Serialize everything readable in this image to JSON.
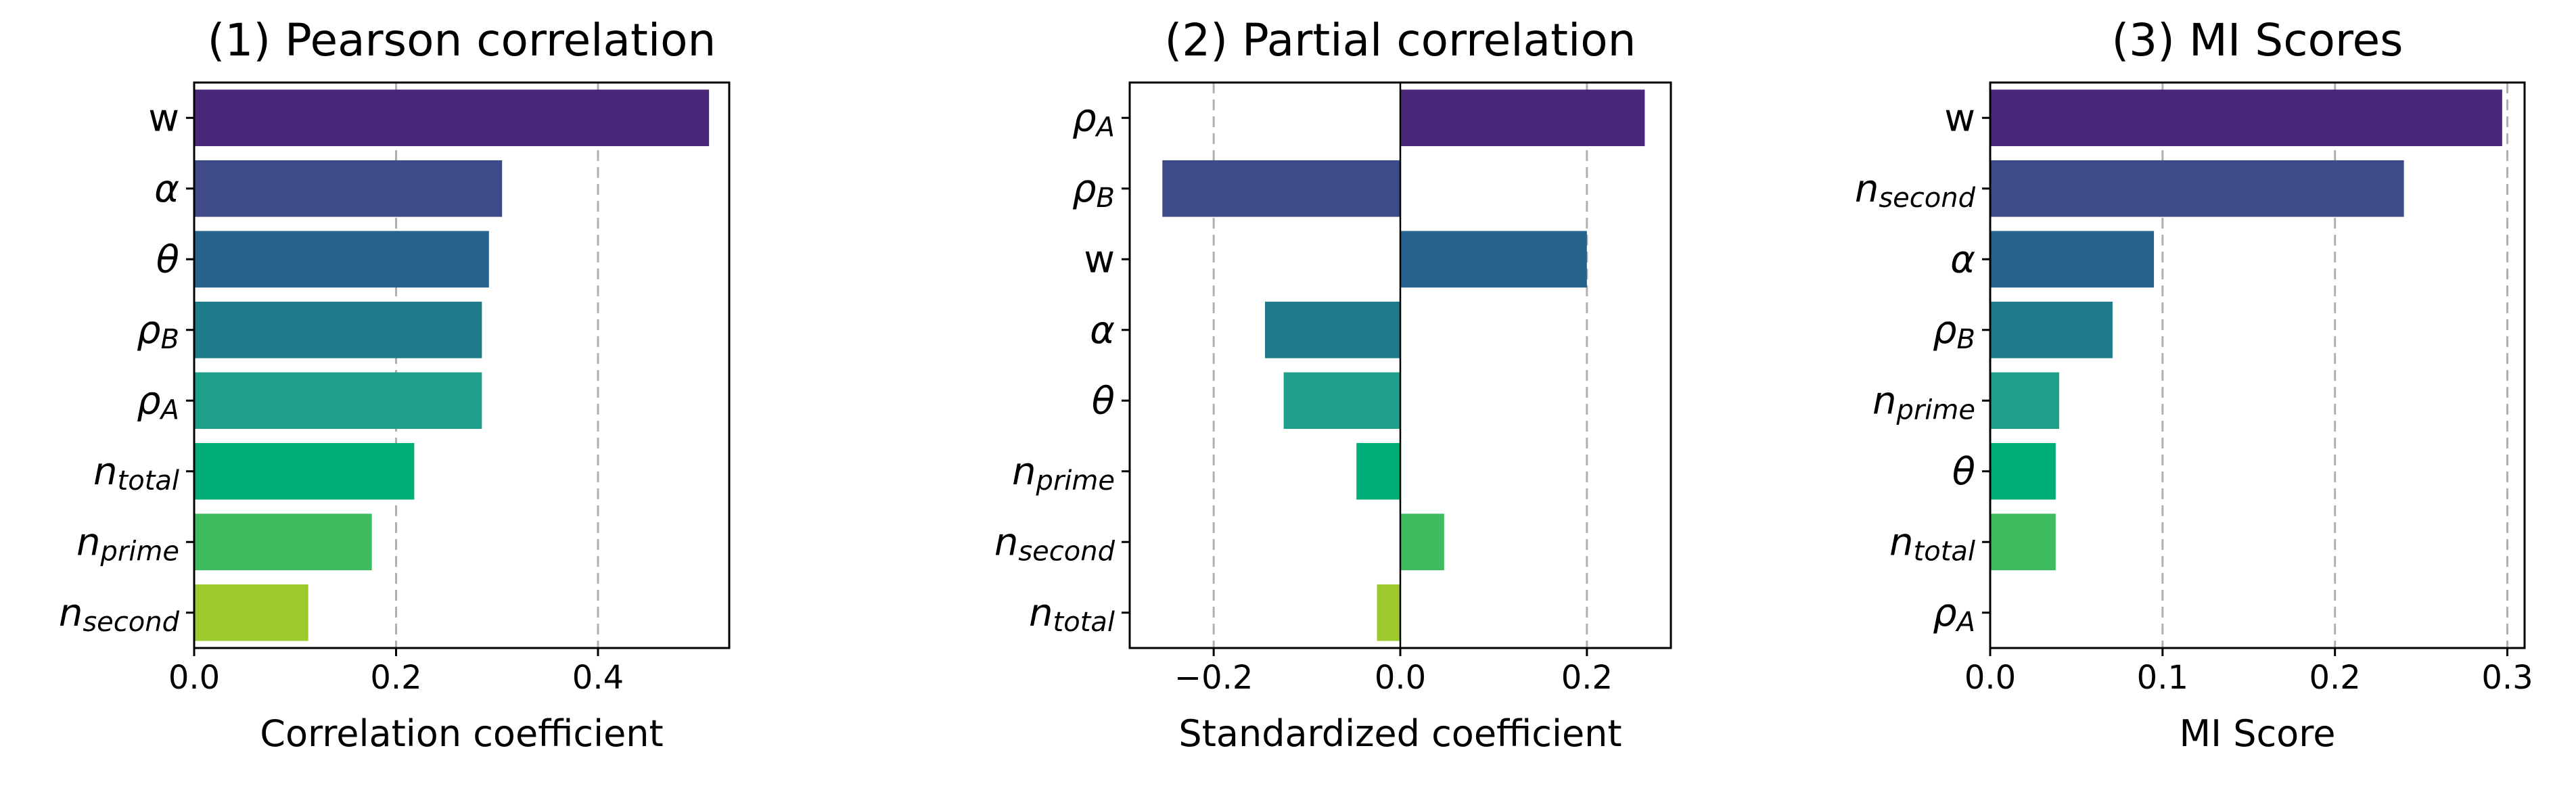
{
  "chart_data": [
    {
      "type": "bar",
      "orientation": "horizontal",
      "title": "(1) Pearson correlation",
      "xlabel": "Correlation coefficient",
      "ylabel": "",
      "xlim": [
        0.0,
        0.53
      ],
      "xticks": [
        0.0,
        0.2,
        0.4
      ],
      "xtick_labels": [
        "0.0",
        "0.2",
        "0.4"
      ],
      "grid": "x dashed",
      "categories": [
        {
          "base": "w",
          "sub": ""
        },
        {
          "base": "α",
          "sub": ""
        },
        {
          "base": "θ",
          "sub": ""
        },
        {
          "base": "ρ",
          "sub": "B"
        },
        {
          "base": "ρ",
          "sub": "A"
        },
        {
          "base": "n",
          "sub": "total"
        },
        {
          "base": "n",
          "sub": "prime"
        },
        {
          "base": "n",
          "sub": "second"
        }
      ],
      "values": [
        0.51,
        0.305,
        0.292,
        0.285,
        0.285,
        0.218,
        0.176,
        0.113
      ],
      "colors": [
        "#482878",
        "#3e4a89",
        "#26648e",
        "#1f7a8c",
        "#1f9e89",
        "#00ad78",
        "#3fbc5f",
        "#9dc92f"
      ]
    },
    {
      "type": "bar",
      "orientation": "horizontal",
      "title": "(2) Partial correlation",
      "xlabel": "Standardized coefficient",
      "ylabel": "",
      "xlim": [
        -0.29,
        0.29
      ],
      "xticks": [
        -0.2,
        0.0,
        0.2
      ],
      "xtick_labels": [
        "−0.2",
        "0.0",
        "0.2"
      ],
      "grid": "x dashed",
      "categories": [
        {
          "base": "ρ",
          "sub": "A"
        },
        {
          "base": "ρ",
          "sub": "B"
        },
        {
          "base": "w",
          "sub": ""
        },
        {
          "base": "α",
          "sub": ""
        },
        {
          "base": "θ",
          "sub": ""
        },
        {
          "base": "n",
          "sub": "prime"
        },
        {
          "base": "n",
          "sub": "second"
        },
        {
          "base": "n",
          "sub": "total"
        }
      ],
      "values": [
        0.262,
        -0.255,
        0.2,
        -0.145,
        -0.125,
        -0.047,
        0.047,
        -0.025
      ],
      "colors": [
        "#482878",
        "#3e4a89",
        "#26648e",
        "#1f7a8c",
        "#1f9e89",
        "#00ad78",
        "#3fbc5f",
        "#9dc92f"
      ]
    },
    {
      "type": "bar",
      "orientation": "horizontal",
      "title": "(3) MI Scores",
      "xlabel": "MI Score",
      "ylabel": "",
      "xlim": [
        0.0,
        0.31
      ],
      "xticks": [
        0.0,
        0.1,
        0.2,
        0.3
      ],
      "xtick_labels": [
        "0.0",
        "0.1",
        "0.2",
        "0.3"
      ],
      "grid": "x dashed",
      "categories": [
        {
          "base": "w",
          "sub": ""
        },
        {
          "base": "n",
          "sub": "second"
        },
        {
          "base": "α",
          "sub": ""
        },
        {
          "base": "ρ",
          "sub": "B"
        },
        {
          "base": "n",
          "sub": "prime"
        },
        {
          "base": "θ",
          "sub": ""
        },
        {
          "base": "n",
          "sub": "total"
        },
        {
          "base": "ρ",
          "sub": "A"
        }
      ],
      "values": [
        0.297,
        0.24,
        0.095,
        0.071,
        0.04,
        0.038,
        0.038,
        0.0
      ],
      "colors": [
        "#482878",
        "#3e4a89",
        "#26648e",
        "#1f7a8c",
        "#1f9e89",
        "#00ad78",
        "#3fbc5f",
        "#9dc92f"
      ]
    }
  ]
}
